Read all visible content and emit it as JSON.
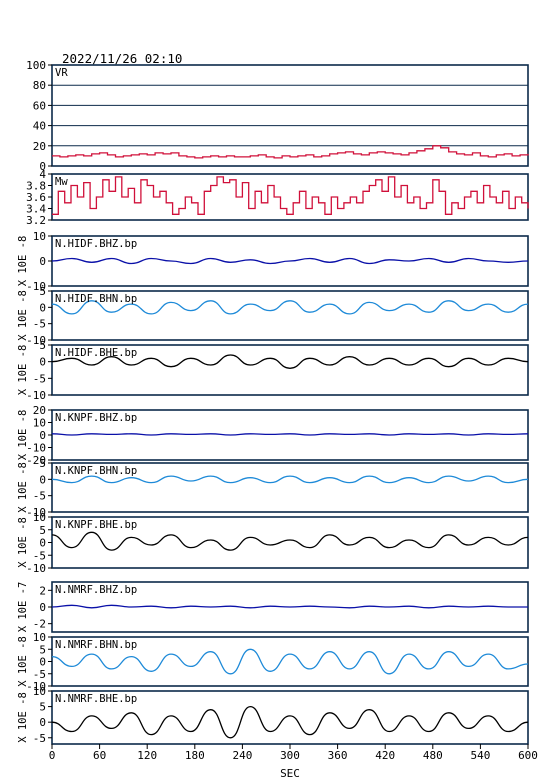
{
  "header": {
    "timestamp": "2022/11/26 02:10"
  },
  "colors": {
    "vr": "#d0103a",
    "mw": "#d0103a",
    "dark_blue": "#0a10a8",
    "light_blue": "#1e8ad8",
    "black": "#000000",
    "frame": "#0b2a4a"
  },
  "chart_data": {
    "type": "line",
    "xlabel": "SEC",
    "xlim": [
      0,
      600
    ],
    "xticks": [
      0,
      60,
      120,
      180,
      240,
      300,
      360,
      420,
      480,
      540,
      600
    ],
    "panels": [
      {
        "name": "VR",
        "ylim": [
          0,
          100
        ],
        "yticks": [
          0,
          20,
          40,
          60,
          80,
          100
        ],
        "gridlines": [
          20,
          40,
          60,
          80
        ],
        "color_key": "vr",
        "style": "step",
        "x": [
          0,
          10,
          20,
          30,
          40,
          50,
          60,
          70,
          80,
          90,
          100,
          110,
          120,
          130,
          140,
          150,
          160,
          170,
          180,
          190,
          200,
          210,
          220,
          230,
          240,
          250,
          260,
          270,
          280,
          290,
          300,
          310,
          320,
          330,
          340,
          350,
          360,
          370,
          380,
          390,
          400,
          410,
          420,
          430,
          440,
          450,
          460,
          470,
          480,
          490,
          500,
          510,
          520,
          530,
          540,
          550,
          560,
          570,
          580,
          590,
          600
        ],
        "y": [
          10,
          9,
          10,
          11,
          10,
          12,
          13,
          11,
          9,
          10,
          11,
          12,
          11,
          13,
          12,
          13,
          10,
          9,
          8,
          9,
          10,
          9,
          10,
          9,
          9,
          10,
          11,
          9,
          8,
          10,
          9,
          10,
          11,
          9,
          10,
          12,
          13,
          14,
          12,
          11,
          13,
          14,
          13,
          12,
          11,
          13,
          15,
          17,
          20,
          18,
          14,
          12,
          11,
          13,
          10,
          9,
          11,
          12,
          10,
          11,
          12
        ]
      },
      {
        "name": "Mw",
        "ylim": [
          3.2,
          4.0
        ],
        "yticks": [
          3.2,
          3.4,
          3.6,
          3.8,
          4.0
        ],
        "color_key": "mw",
        "style": "step",
        "x": [
          0,
          8,
          16,
          24,
          32,
          40,
          48,
          56,
          64,
          72,
          80,
          88,
          96,
          104,
          112,
          120,
          128,
          136,
          144,
          152,
          160,
          168,
          176,
          184,
          192,
          200,
          208,
          216,
          224,
          232,
          240,
          248,
          256,
          264,
          272,
          280,
          288,
          296,
          304,
          312,
          320,
          328,
          336,
          344,
          352,
          360,
          368,
          376,
          384,
          392,
          400,
          408,
          416,
          424,
          432,
          440,
          448,
          456,
          464,
          472,
          480,
          488,
          496,
          504,
          512,
          520,
          528,
          536,
          544,
          552,
          560,
          568,
          576,
          584,
          592,
          600
        ],
        "y": [
          3.3,
          3.7,
          3.5,
          3.8,
          3.6,
          3.85,
          3.4,
          3.6,
          3.9,
          3.7,
          3.95,
          3.6,
          3.75,
          3.5,
          3.9,
          3.8,
          3.6,
          3.7,
          3.5,
          3.3,
          3.4,
          3.6,
          3.5,
          3.3,
          3.7,
          3.8,
          3.95,
          3.85,
          3.9,
          3.6,
          3.85,
          3.4,
          3.7,
          3.5,
          3.8,
          3.6,
          3.4,
          3.3,
          3.5,
          3.7,
          3.4,
          3.6,
          3.5,
          3.3,
          3.6,
          3.4,
          3.5,
          3.6,
          3.5,
          3.7,
          3.8,
          3.9,
          3.7,
          3.95,
          3.6,
          3.8,
          3.5,
          3.6,
          3.4,
          3.5,
          3.9,
          3.7,
          3.3,
          3.5,
          3.4,
          3.6,
          3.7,
          3.5,
          3.8,
          3.6,
          3.5,
          3.7,
          3.4,
          3.6,
          3.5,
          3.4
        ]
      },
      {
        "name": "N.HIDF.BHZ.bp",
        "ylim": [
          -10,
          10
        ],
        "yticks": [
          -10,
          0,
          10
        ],
        "ylabel": "X 10E -8",
        "color_key": "dark_blue",
        "style": "wave",
        "x": [
          0,
          25,
          50,
          75,
          100,
          125,
          150,
          175,
          200,
          225,
          250,
          275,
          300,
          325,
          350,
          375,
          400,
          425,
          450,
          475,
          500,
          525,
          550,
          575,
          600
        ],
        "y": [
          0,
          1,
          -0.5,
          1,
          -1,
          1,
          0,
          -1,
          1,
          -0.5,
          0.5,
          -1,
          0,
          1,
          -0.5,
          1,
          -1,
          0.5,
          0,
          1,
          -0.5,
          1,
          0,
          -0.5,
          0
        ]
      },
      {
        "name": "N.HIDF.BHN.bp",
        "ylim": [
          -10,
          5
        ],
        "yticks": [
          -10,
          -5,
          0,
          5
        ],
        "ylabel": "X 10E -8",
        "color_key": "light_blue",
        "style": "wave",
        "x": [
          0,
          25,
          50,
          75,
          100,
          125,
          150,
          175,
          200,
          225,
          250,
          275,
          300,
          325,
          350,
          375,
          400,
          425,
          450,
          475,
          500,
          525,
          550,
          575,
          600
        ],
        "y": [
          1,
          -2,
          2,
          -1.5,
          1,
          -2,
          1.5,
          -1,
          2,
          -2,
          1,
          -1,
          2,
          -1.5,
          1,
          -2,
          1.5,
          -1,
          1,
          -1.5,
          2,
          -1,
          1,
          -1.5,
          1
        ]
      },
      {
        "name": "N.HIDF.BHE.bp",
        "ylim": [
          -10,
          5
        ],
        "yticks": [
          -10,
          -5,
          0,
          5
        ],
        "ylabel": "X 10E -8",
        "color_key": "black",
        "style": "wave",
        "x": [
          0,
          25,
          50,
          75,
          100,
          125,
          150,
          175,
          200,
          225,
          250,
          275,
          300,
          325,
          350,
          375,
          400,
          425,
          450,
          475,
          500,
          525,
          550,
          575,
          600
        ],
        "y": [
          0,
          1,
          -1,
          1.5,
          -1,
          1,
          -1.5,
          1,
          -1,
          2,
          -1,
          1,
          -2,
          1,
          -1,
          1.5,
          -1,
          1,
          -1,
          1,
          -1.5,
          1,
          -1,
          1,
          0
        ]
      },
      {
        "name": "N.KNPF.BHZ.bp",
        "ylim": [
          -20,
          20
        ],
        "yticks": [
          -20,
          -10,
          0,
          10,
          20
        ],
        "ylabel": "X 10E -8",
        "color_key": "dark_blue",
        "style": "wave",
        "x": [
          0,
          25,
          50,
          75,
          100,
          125,
          150,
          175,
          200,
          225,
          250,
          275,
          300,
          325,
          350,
          375,
          400,
          425,
          450,
          475,
          500,
          525,
          550,
          575,
          600
        ],
        "y": [
          1,
          0,
          1,
          0.5,
          1,
          0,
          1,
          0.5,
          1,
          0,
          1,
          0.5,
          1,
          0,
          1,
          0.5,
          1,
          0,
          1,
          0.5,
          1,
          0,
          1,
          0.5,
          1
        ]
      },
      {
        "name": "N.KNPF.BHN.bp",
        "ylim": [
          -10,
          5
        ],
        "yticks": [
          -10,
          -5,
          0,
          5
        ],
        "ylabel": "X 10E -8",
        "color_key": "light_blue",
        "style": "wave",
        "x": [
          0,
          25,
          50,
          75,
          100,
          125,
          150,
          175,
          200,
          225,
          250,
          275,
          300,
          325,
          350,
          375,
          400,
          425,
          450,
          475,
          500,
          525,
          550,
          575,
          600
        ],
        "y": [
          0,
          -1,
          1,
          -1,
          0.5,
          -1,
          1,
          -0.5,
          1,
          -1,
          0.5,
          -1,
          1,
          -1,
          0.5,
          -1,
          1,
          -1,
          0.5,
          -1,
          1,
          -0.5,
          1,
          -1,
          0
        ]
      },
      {
        "name": "N.KNPF.BHE.bp",
        "ylim": [
          -10,
          10
        ],
        "yticks": [
          -10,
          -5,
          0,
          5,
          10
        ],
        "ylabel": "X 10E -8",
        "color_key": "black",
        "style": "wave",
        "x": [
          0,
          25,
          50,
          75,
          100,
          125,
          150,
          175,
          200,
          225,
          250,
          275,
          300,
          325,
          350,
          375,
          400,
          425,
          450,
          475,
          500,
          525,
          550,
          575,
          600
        ],
        "y": [
          3,
          -2,
          4,
          -3,
          2,
          -1,
          3,
          -2,
          1,
          -3,
          2,
          -1,
          1,
          -2,
          3,
          -1,
          2,
          -2,
          1,
          -2,
          3,
          -1,
          2,
          -1,
          2
        ]
      },
      {
        "name": "N.NMRF.BHZ.bp",
        "ylim": [
          -3,
          3
        ],
        "yticks": [
          -2,
          0,
          2
        ],
        "ylabel": "X 10E -7",
        "color_key": "dark_blue",
        "style": "wave",
        "x": [
          0,
          25,
          50,
          75,
          100,
          125,
          150,
          175,
          200,
          225,
          250,
          275,
          300,
          325,
          350,
          375,
          400,
          425,
          450,
          475,
          500,
          525,
          550,
          575,
          600
        ],
        "y": [
          0,
          0.2,
          -0.1,
          0.2,
          0,
          0.1,
          -0.1,
          0.1,
          0,
          0.1,
          -0.1,
          0.1,
          0,
          0.1,
          0,
          -0.1,
          0.1,
          0,
          0.1,
          -0.1,
          0.1,
          0,
          0.1,
          0,
          0
        ]
      },
      {
        "name": "N.NMRF.BHN.bp",
        "ylim": [
          -10,
          10
        ],
        "yticks": [
          -10,
          -5,
          0,
          5,
          10
        ],
        "ylabel": "X 10E -8",
        "color_key": "light_blue",
        "style": "wave",
        "x": [
          0,
          25,
          50,
          75,
          100,
          125,
          150,
          175,
          200,
          225,
          250,
          275,
          300,
          325,
          350,
          375,
          400,
          425,
          450,
          475,
          500,
          525,
          550,
          575,
          600
        ],
        "y": [
          2,
          -2,
          3,
          -3,
          2,
          -4,
          3,
          -2,
          4,
          -5,
          5,
          -4,
          3,
          -3,
          4,
          -3,
          4,
          -5,
          3,
          -3,
          4,
          -2,
          3,
          -3,
          -1
        ]
      },
      {
        "name": "N.NMRF.BHE.bp",
        "ylim": [
          -7,
          10
        ],
        "yticks": [
          -5,
          0,
          5,
          10
        ],
        "ylabel": "X 10E -8",
        "color_key": "black",
        "style": "wave",
        "x": [
          0,
          25,
          50,
          75,
          100,
          125,
          150,
          175,
          200,
          225,
          250,
          275,
          300,
          325,
          350,
          375,
          400,
          425,
          450,
          475,
          500,
          525,
          550,
          575,
          600
        ],
        "y": [
          0,
          -3,
          2,
          -2,
          3,
          -4,
          2,
          -3,
          4,
          -5,
          5,
          -3,
          2,
          -4,
          3,
          -2,
          4,
          -3,
          2,
          -3,
          3,
          -2,
          2,
          -3,
          0
        ]
      }
    ]
  }
}
